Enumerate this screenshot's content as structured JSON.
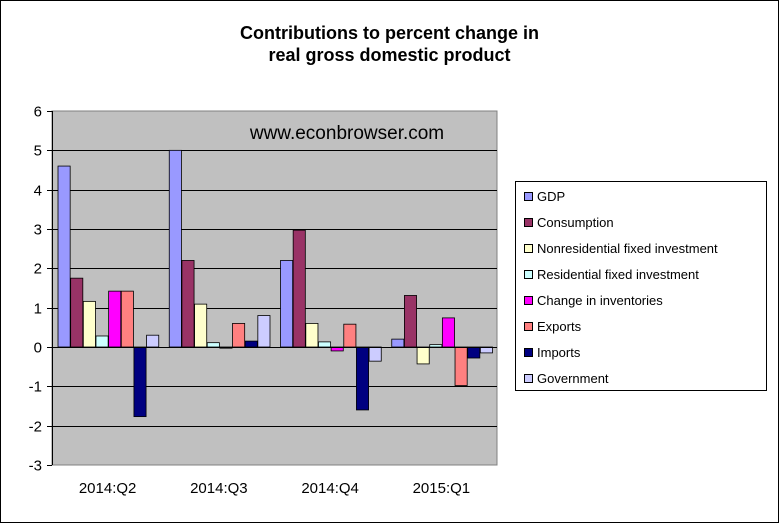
{
  "title_line1": "Contributions to percent change in",
  "title_line2": "real gross domestic product",
  "watermark": "www.econbrowser.com",
  "chart_data": {
    "type": "bar",
    "title": "Contributions to percent change in real gross domestic product",
    "categories": [
      "2014:Q2",
      "2014:Q3",
      "2014:Q4",
      "2015:Q1"
    ],
    "ylim": [
      -3,
      6
    ],
    "yticks": [
      -3,
      -2,
      -1,
      0,
      1,
      2,
      3,
      4,
      5,
      6
    ],
    "grid": true,
    "legend": "right",
    "plot_background": "#C0C0C0",
    "series": [
      {
        "name": "GDP",
        "color": "#9999FF",
        "values": [
          4.6,
          5.0,
          2.2,
          0.2
        ]
      },
      {
        "name": "Consumption",
        "color": "#993366",
        "values": [
          1.75,
          2.2,
          2.97,
          1.31
        ]
      },
      {
        "name": "Nonresidential fixed investment",
        "color": "#FFFFCC",
        "values": [
          1.16,
          1.09,
          0.6,
          -0.43
        ]
      },
      {
        "name": "Residential fixed investment",
        "color": "#CCFFFF",
        "values": [
          0.28,
          0.11,
          0.13,
          0.06
        ]
      },
      {
        "name": "Change in inventories",
        "color": "#FF00FF",
        "values": [
          1.42,
          -0.03,
          -0.1,
          0.74
        ]
      },
      {
        "name": "Exports",
        "color": "#FF8080",
        "values": [
          1.42,
          0.6,
          0.58,
          -0.98
        ]
      },
      {
        "name": "Imports",
        "color": "#000080",
        "values": [
          -1.77,
          0.15,
          -1.6,
          -0.28
        ]
      },
      {
        "name": "Government",
        "color": "#CCCCFF",
        "values": [
          0.3,
          0.8,
          -0.36,
          -0.15
        ]
      }
    ]
  }
}
